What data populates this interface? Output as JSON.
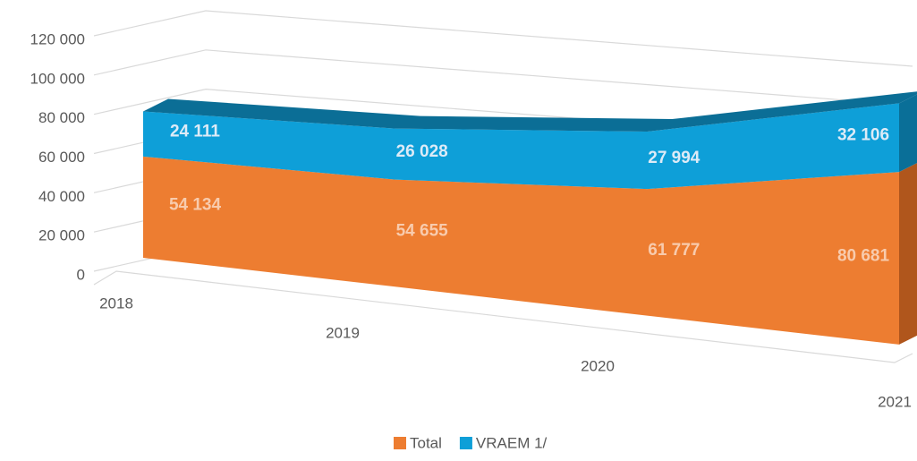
{
  "chart_data": {
    "type": "area3d",
    "stacked": true,
    "categories": [
      "2018",
      "2019",
      "2020",
      "2021"
    ],
    "series": [
      {
        "name": "Total",
        "color": "#ED7D31",
        "values": [
          54134,
          54655,
          61777,
          80681
        ],
        "value_labels": [
          "54 134",
          "54 655",
          "61 777",
          "80 681"
        ],
        "label_color": "#F8CBAD"
      },
      {
        "name": "VRAEM 1/",
        "color": "#0E9FD8",
        "values": [
          24111,
          26028,
          27994,
          32106
        ],
        "value_labels": [
          "24 111",
          "26 028",
          "27 994",
          "32 106"
        ],
        "label_color": "#DDEBF7"
      }
    ],
    "ylim": [
      0,
      120000
    ],
    "yticks": [
      {
        "value": 0,
        "label": "0"
      },
      {
        "value": 20000,
        "label": "20 000"
      },
      {
        "value": 40000,
        "label": "40 000"
      },
      {
        "value": 60000,
        "label": "60 000"
      },
      {
        "value": 80000,
        "label": "80 000"
      },
      {
        "value": 100000,
        "label": "100 000"
      },
      {
        "value": 120000,
        "label": "120 000"
      }
    ],
    "grid": true,
    "legend": "bottom"
  }
}
